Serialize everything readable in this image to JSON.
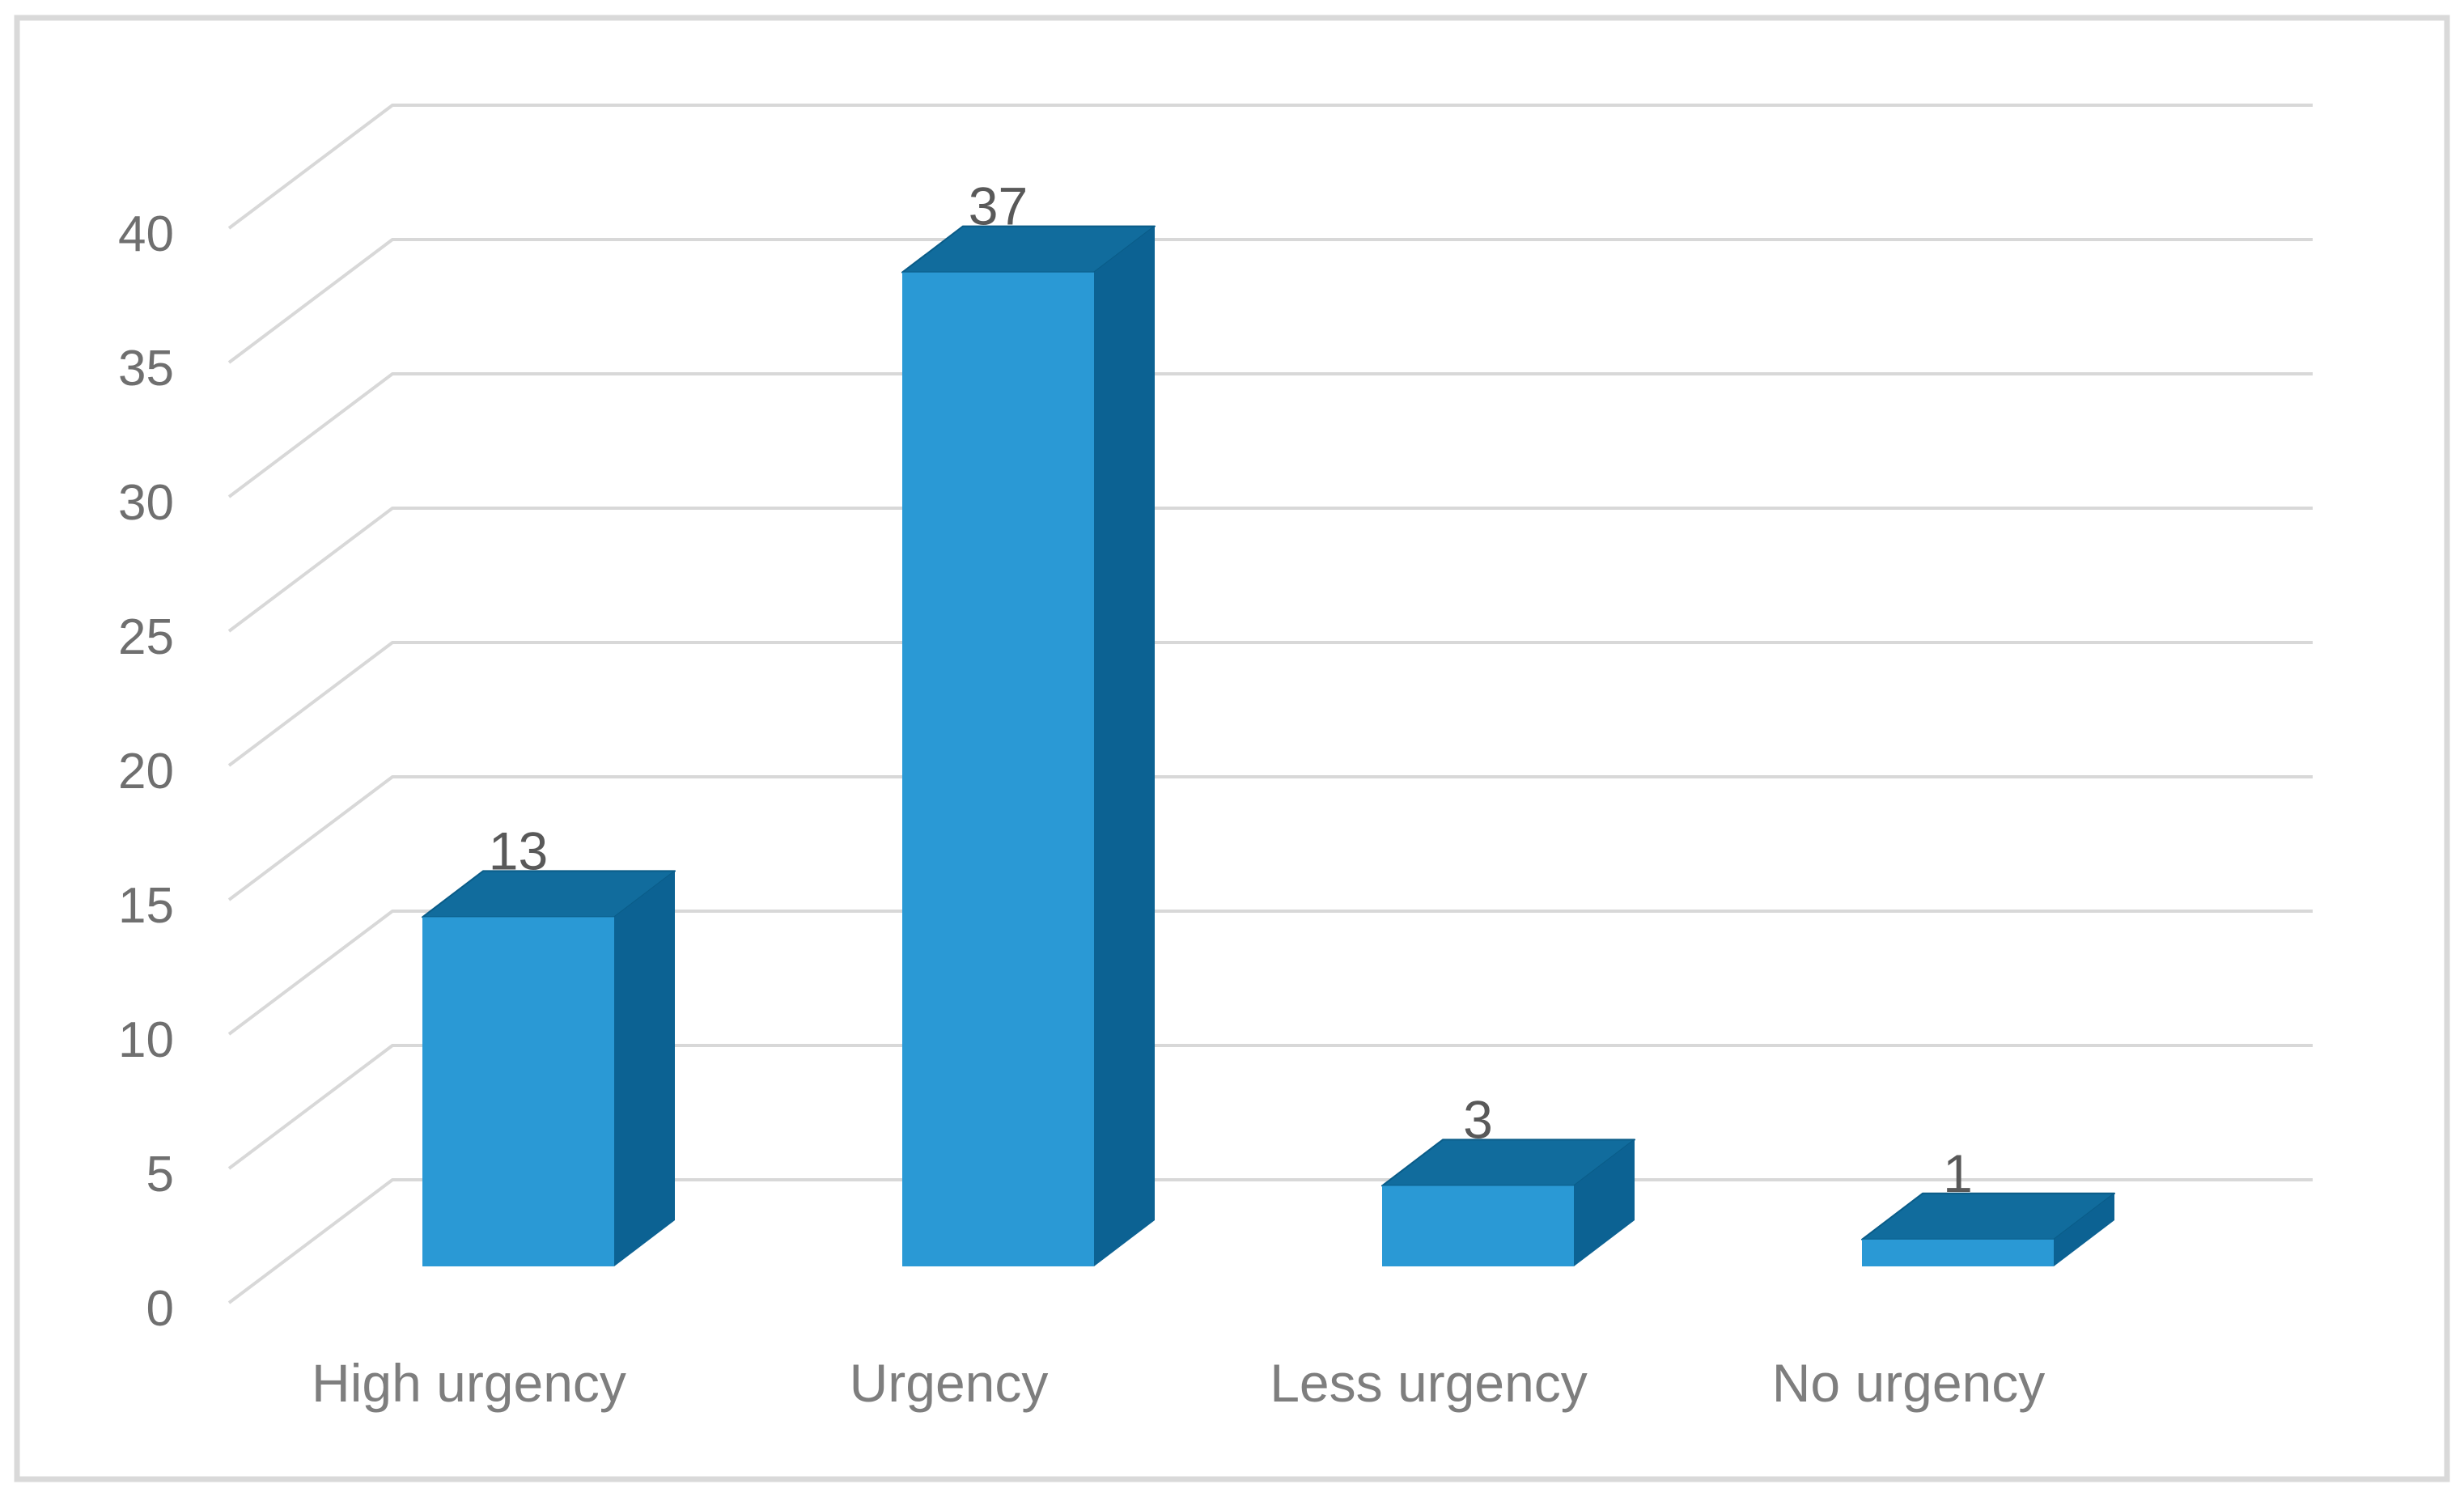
{
  "chart_data": {
    "type": "bar",
    "variant": "3d-column",
    "title": "",
    "xlabel": "",
    "ylabel": "",
    "categories": [
      "High urgency",
      "Urgency",
      "Less urgency",
      "No urgency"
    ],
    "values": [
      13,
      37,
      3,
      1
    ],
    "data_labels": [
      "13",
      "37",
      "3",
      "1"
    ],
    "ylim": [
      0,
      40
    ],
    "yticks": [
      0,
      5,
      10,
      15,
      20,
      25,
      30,
      35,
      40
    ],
    "grid": true,
    "legend": false,
    "colors": {
      "bar_front": "#2A99D5",
      "bar_top": "#116C9D",
      "bar_side": "#0C6293",
      "bar_edge": "#0A5C88",
      "gridline": "#D8D8D8",
      "frame_border": "#D9D9D9",
      "axis_label": "#6F6F6F",
      "category_label": "#7E7E7E",
      "data_label": "#595959",
      "background": "#FFFFFF"
    }
  }
}
